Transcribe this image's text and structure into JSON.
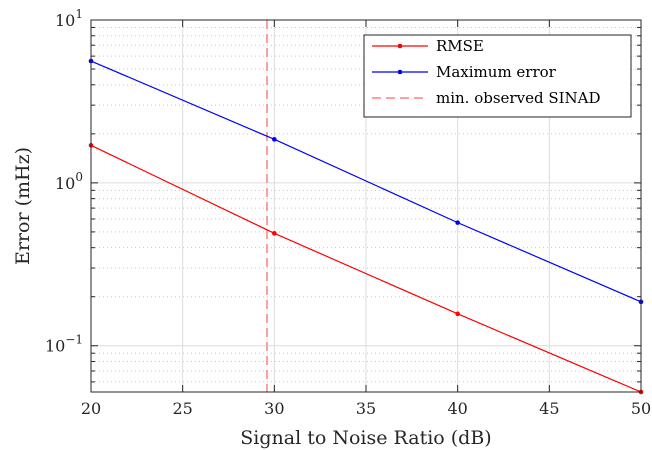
{
  "chart_data": {
    "type": "line",
    "xlabel": "Signal to Noise Ratio (dB)",
    "ylabel": "Error (mHz)",
    "x_ticks": [
      "20",
      "25",
      "30",
      "35",
      "40",
      "45",
      "50"
    ],
    "y_ticks": [
      {
        "base": "10",
        "exp": "1",
        "value": 10
      },
      {
        "base": "10",
        "exp": "0",
        "value": 1
      },
      {
        "base": "10",
        "exp": "−1",
        "value": 0.1
      }
    ],
    "xlim": [
      20,
      50
    ],
    "ylim": [
      0.052,
      10
    ],
    "yscale": "log",
    "grid": true,
    "minor_grid": true,
    "legend_position": "top-right",
    "series": [
      {
        "name": "RMSE",
        "color": "#ff0000",
        "style": "solid",
        "marker": "dot",
        "x": [
          20,
          30,
          40,
          50
        ],
        "y": [
          1.7,
          0.49,
          0.157,
          0.052
        ]
      },
      {
        "name": "Maximum error",
        "color": "#0000ff",
        "style": "solid",
        "marker": "dot",
        "x": [
          20,
          30,
          40,
          50
        ],
        "y": [
          5.6,
          1.85,
          0.57,
          0.186
        ]
      }
    ],
    "vlines": [
      {
        "name": "min. observed SINAD",
        "color": "#ff8080",
        "style": "dashed",
        "x": 29.6
      }
    ]
  }
}
